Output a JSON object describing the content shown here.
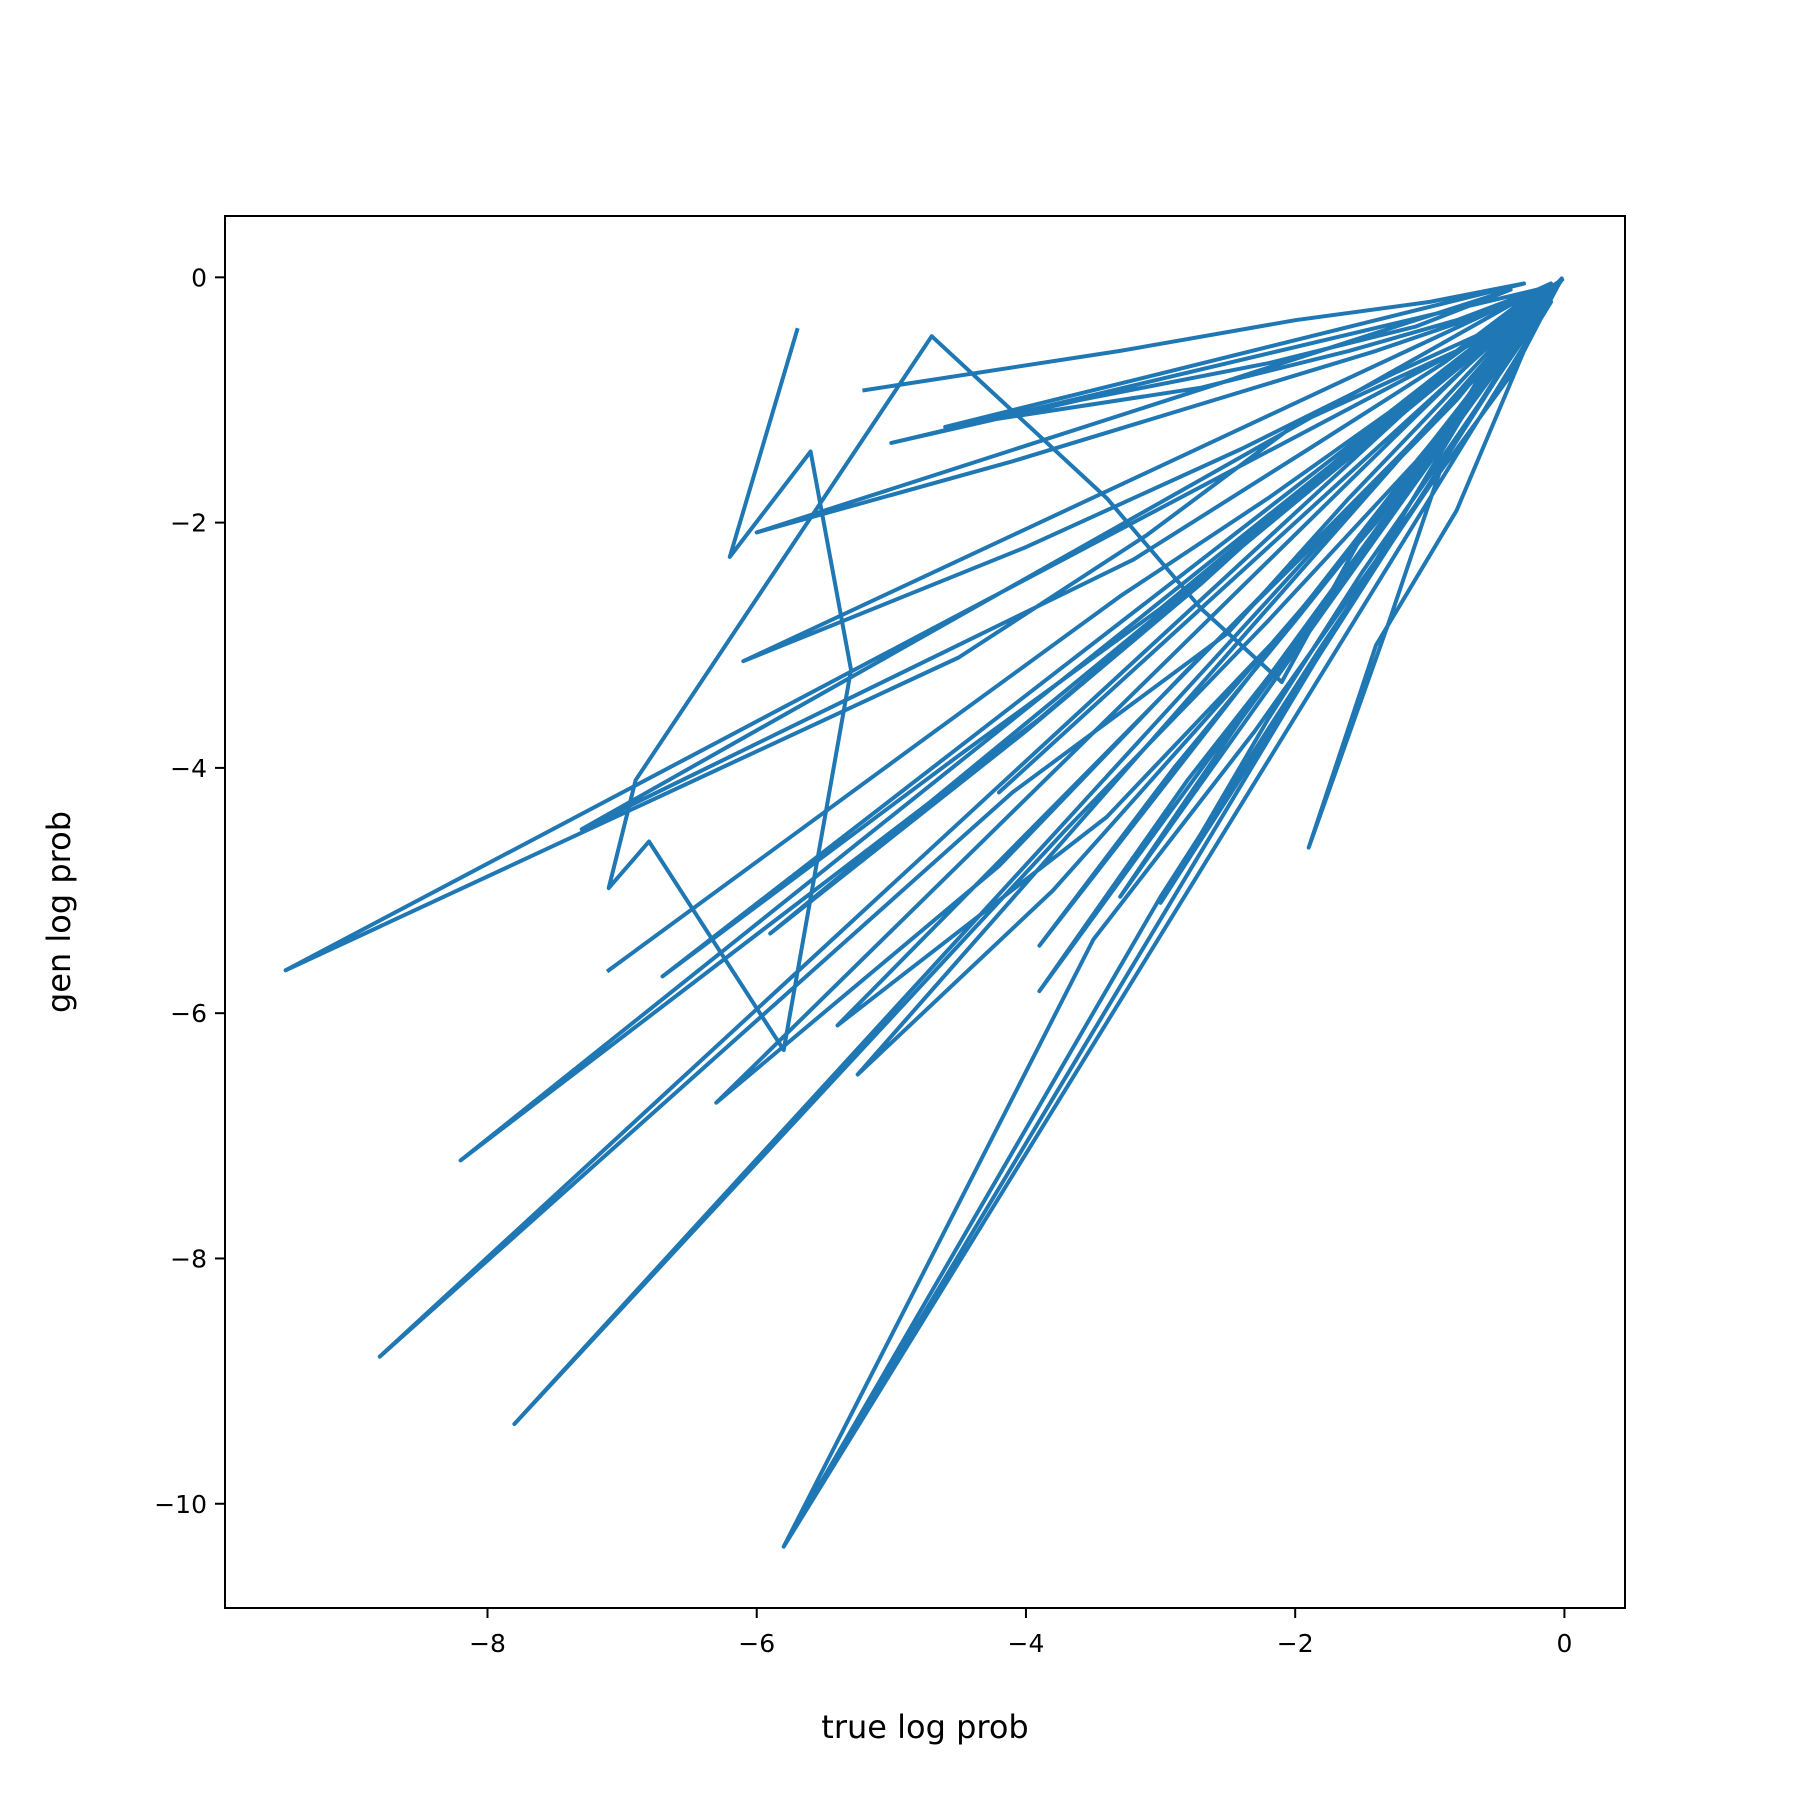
{
  "chart_data": {
    "type": "line",
    "title": "",
    "xlabel": "true log prob",
    "ylabel": "gen log prob",
    "xlim": [
      -9.95,
      0.45
    ],
    "ylim": [
      -10.85,
      0.5
    ],
    "xticks": [
      -8,
      -6,
      -4,
      -2,
      0
    ],
    "yticks": [
      0,
      -2,
      -4,
      -6,
      -8,
      -10
    ],
    "xtick_labels": [
      "−8",
      "−6",
      "−4",
      "−2",
      "0"
    ],
    "ytick_labels": [
      "0",
      "−2",
      "−4",
      "−6",
      "−8",
      "−10"
    ],
    "grid": false,
    "legend": "none",
    "line_color": "#1f77b4",
    "series": [
      {
        "x": [
          -5.7,
          -6.2,
          -5.6,
          -5.3,
          -5.8,
          -6.8,
          -7.1,
          -6.9,
          -4.7,
          -3.4,
          -2.7,
          -2.1,
          -1.5,
          -0.9,
          -0.4,
          -0.1,
          -0.02,
          -0.3,
          -0.8,
          -1.4,
          -1.9,
          -1.3,
          -0.9,
          -0.5,
          -0.1,
          -9.5,
          -4.5,
          -3.1,
          -2.0,
          -0.8,
          -0.2,
          -8.8,
          -4.1,
          -2.5,
          -1.6,
          -0.9,
          -0.3,
          -5.8,
          -3.5,
          -2.3,
          -1.2,
          -0.6,
          -0.1,
          -5.8,
          -3.0,
          -1.8,
          -1.0,
          -0.4,
          -0.05,
          -7.8,
          -3.7,
          -2.2,
          -1.1,
          -0.5,
          -0.1,
          -8.2,
          -3.9,
          -2.4,
          -1.3,
          -0.7,
          -0.2,
          -7.3,
          -3.2,
          -1.9,
          -0.9,
          -0.4,
          -0.02
        ],
        "y": [
          -0.43,
          -2.28,
          -1.42,
          -3.2,
          -6.3,
          -4.6,
          -4.98,
          -4.1,
          -0.48,
          -1.8,
          -2.7,
          -3.3,
          -2.1,
          -1.3,
          -0.4,
          -0.1,
          -0.01,
          -0.6,
          -1.9,
          -3.0,
          -4.65,
          -2.8,
          -1.5,
          -0.8,
          -0.2,
          -5.65,
          -3.1,
          -2.1,
          -1.2,
          -0.6,
          -0.1,
          -8.8,
          -4.2,
          -2.9,
          -1.8,
          -1.0,
          -0.3,
          -10.35,
          -5.4,
          -3.7,
          -2.0,
          -1.1,
          -0.2,
          -10.35,
          -5.05,
          -3.0,
          -1.7,
          -0.8,
          -0.05,
          -9.35,
          -4.5,
          -2.8,
          -1.5,
          -0.7,
          -0.1,
          -7.2,
          -3.6,
          -2.2,
          -1.2,
          -0.6,
          -0.1,
          -4.5,
          -2.3,
          -1.4,
          -0.7,
          -0.3,
          -0.02
        ]
      },
      {
        "x": [
          -5.2,
          -3.3,
          -2.0,
          -1.0,
          -0.3,
          -4.6,
          -2.7,
          -1.6,
          -0.8,
          -0.2,
          -5.0,
          -3.6,
          -2.2,
          -1.1,
          -0.4,
          -6.0,
          -4.1,
          -2.6,
          -1.4,
          -0.6,
          -0.1,
          -6.1,
          -4.0,
          -2.4,
          -1.3,
          -0.5,
          -0.1,
          -6.3,
          -4.2,
          -2.8,
          -1.6,
          -0.8,
          -0.2,
          -5.25,
          -3.8,
          -2.5,
          -1.4,
          -0.7,
          -0.1,
          -5.4,
          -3.4,
          -2.1,
          -1.2,
          -0.6,
          -0.1
        ],
        "y": [
          -0.92,
          -0.6,
          -0.35,
          -0.2,
          -0.05,
          -1.22,
          -0.9,
          -0.6,
          -0.35,
          -0.1,
          -1.35,
          -1.0,
          -0.7,
          -0.4,
          -0.1,
          -2.08,
          -1.5,
          -1.0,
          -0.6,
          -0.3,
          -0.05,
          -3.13,
          -2.2,
          -1.4,
          -0.8,
          -0.4,
          -0.05,
          -6.73,
          -4.8,
          -3.2,
          -1.9,
          -1.0,
          -0.2,
          -6.5,
          -5.0,
          -3.4,
          -2.0,
          -1.0,
          -0.2,
          -6.1,
          -4.4,
          -2.9,
          -1.7,
          -0.8,
          -0.1
        ]
      },
      {
        "x": [
          -7.1,
          -4.8,
          -3.3,
          -2.2,
          -1.3,
          -0.6,
          -0.1,
          -6.7,
          -4.5,
          -3.0,
          -1.9,
          -1.0,
          -0.3,
          -5.9,
          -4.0,
          -2.7,
          -1.7,
          -0.9,
          -0.2,
          -4.2,
          -3.1,
          -2.2,
          -1.4,
          -0.7,
          -0.1,
          -3.9,
          -2.9,
          -2.0,
          -1.2,
          -0.6,
          -0.1,
          -3.9,
          -2.8,
          -1.8,
          -1.0,
          -0.4,
          -0.05,
          -3.3,
          -2.4,
          -1.6,
          -0.9,
          -0.4,
          -0.05,
          -3.0,
          -2.2,
          -1.5,
          -0.8,
          -0.3,
          -0.02
        ],
        "y": [
          -5.65,
          -3.8,
          -2.6,
          -1.8,
          -1.1,
          -0.5,
          -0.1,
          -5.7,
          -3.9,
          -2.7,
          -1.7,
          -0.9,
          -0.3,
          -5.35,
          -3.7,
          -2.5,
          -1.5,
          -0.8,
          -0.2,
          -4.2,
          -3.1,
          -2.2,
          -1.4,
          -0.7,
          -0.1,
          -5.45,
          -4.0,
          -2.8,
          -1.7,
          -0.8,
          -0.1,
          -5.82,
          -4.1,
          -2.7,
          -1.5,
          -0.6,
          -0.05,
          -5.05,
          -3.6,
          -2.4,
          -1.3,
          -0.6,
          -0.05,
          -5.1,
          -3.6,
          -2.4,
          -1.3,
          -0.5,
          -0.02
        ]
      }
    ]
  }
}
